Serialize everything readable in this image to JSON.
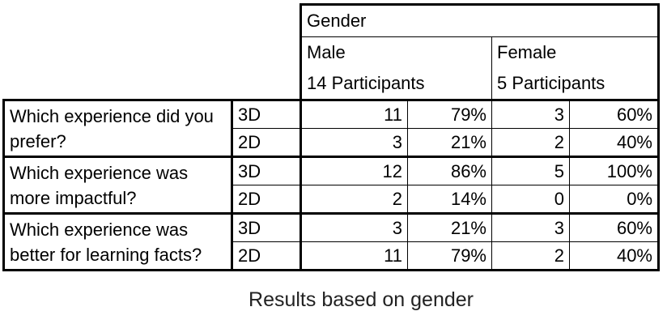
{
  "table": {
    "group_header": "Gender",
    "male": {
      "label": "Male",
      "participants": "14 Participants"
    },
    "female": {
      "label": "Female",
      "participants": "5 Participants"
    },
    "rows": [
      {
        "question": "Which experience did you prefer?",
        "conditions": [
          {
            "condition": "3D",
            "male_n": "11",
            "male_pct": "79%",
            "female_n": "3",
            "female_pct": "60%"
          },
          {
            "condition": "2D",
            "male_n": "3",
            "male_pct": "21%",
            "female_n": "2",
            "female_pct": "40%"
          }
        ]
      },
      {
        "question": "Which experience was more impactful?",
        "conditions": [
          {
            "condition": "3D",
            "male_n": "12",
            "male_pct": "86%",
            "female_n": "5",
            "female_pct": "100%"
          },
          {
            "condition": "2D",
            "male_n": "2",
            "male_pct": "14%",
            "female_n": "0",
            "female_pct": "0%"
          }
        ]
      },
      {
        "question": "Which experience was better for learning facts?",
        "conditions": [
          {
            "condition": "3D",
            "male_n": "3",
            "male_pct": "21%",
            "female_n": "3",
            "female_pct": "60%"
          },
          {
            "condition": "2D",
            "male_n": "11",
            "male_pct": "79%",
            "female_n": "2",
            "female_pct": "40%"
          }
        ]
      }
    ]
  },
  "caption": "Results based on gender"
}
